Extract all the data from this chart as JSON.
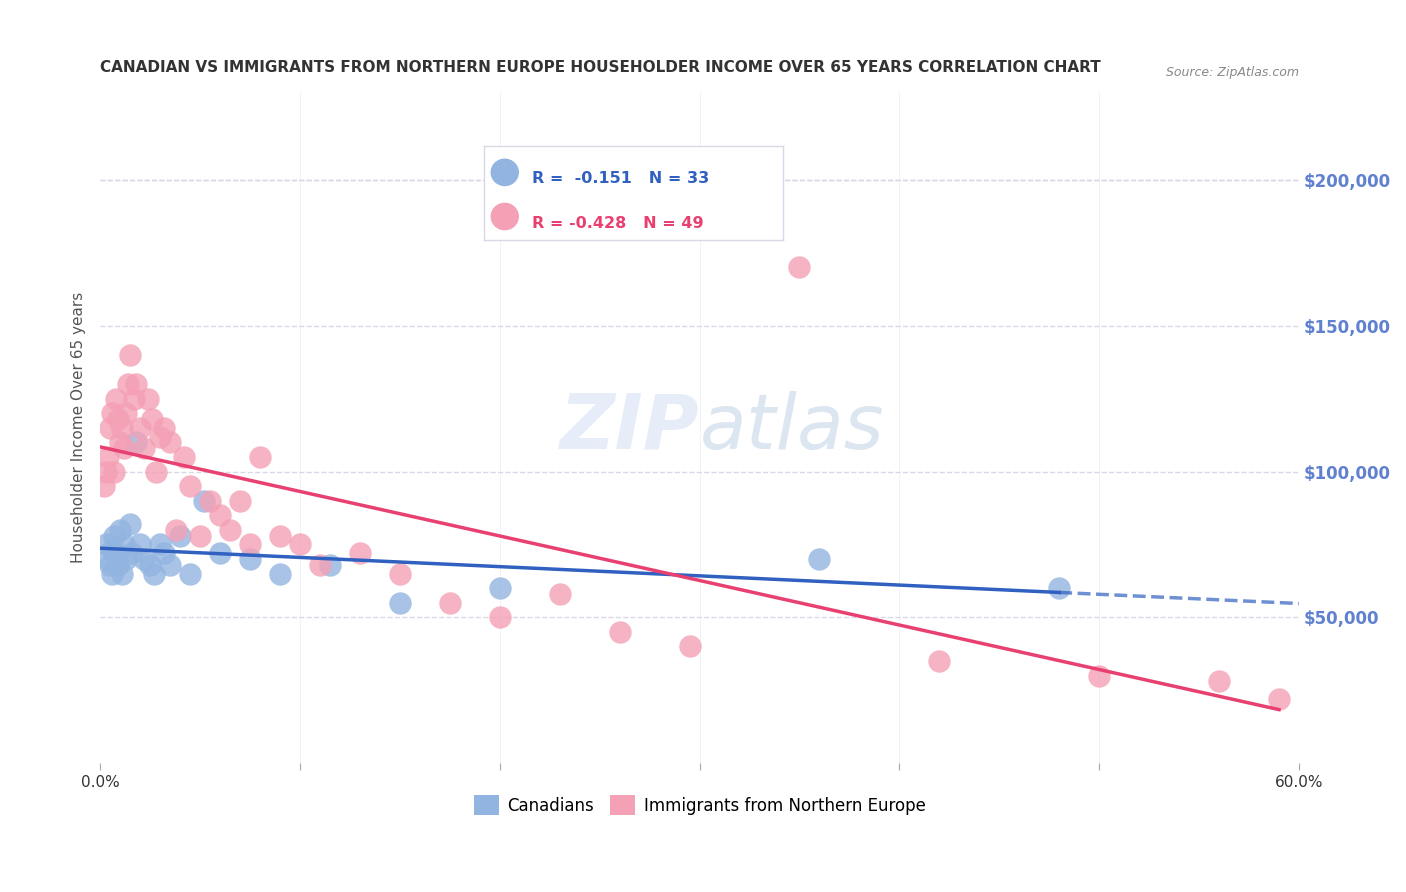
{
  "title": "CANADIAN VS IMMIGRANTS FROM NORTHERN EUROPE HOUSEHOLDER INCOME OVER 65 YEARS CORRELATION CHART",
  "source": "Source: ZipAtlas.com",
  "ylabel": "Householder Income Over 65 years",
  "xmin": 0.0,
  "xmax": 0.6,
  "ymin": 0,
  "ymax": 230000,
  "right_yticks": [
    50000,
    100000,
    150000,
    200000
  ],
  "right_yticklabels": [
    "$50,000",
    "$100,000",
    "$150,000",
    "$200,000"
  ],
  "canadians_R": -0.151,
  "canadians_N": 33,
  "immigrants_R": -0.428,
  "immigrants_N": 49,
  "legend_label_canadians": "Canadians",
  "legend_label_immigrants": "Immigrants from Northern Europe",
  "canadian_color": "#92b4e0",
  "immigrant_color": "#f4a0b5",
  "canadian_line_color": "#3060c0",
  "immigrant_line_color": "#e84070",
  "background_color": "#ffffff",
  "grid_color": "#d8d8e8",
  "canadians_x": [
    0.003,
    0.004,
    0.005,
    0.006,
    0.006,
    0.007,
    0.008,
    0.009,
    0.01,
    0.011,
    0.012,
    0.013,
    0.015,
    0.016,
    0.018,
    0.02,
    0.022,
    0.025,
    0.027,
    0.03,
    0.032,
    0.035,
    0.04,
    0.045,
    0.052,
    0.06,
    0.075,
    0.09,
    0.115,
    0.15,
    0.2,
    0.36,
    0.48
  ],
  "canadians_y": [
    75000,
    70000,
    68000,
    73000,
    65000,
    78000,
    72000,
    68000,
    80000,
    65000,
    75000,
    70000,
    82000,
    72000,
    110000,
    75000,
    70000,
    68000,
    65000,
    75000,
    72000,
    68000,
    78000,
    65000,
    90000,
    72000,
    70000,
    65000,
    68000,
    55000,
    60000,
    70000,
    60000
  ],
  "immigrants_x": [
    0.002,
    0.003,
    0.004,
    0.005,
    0.006,
    0.007,
    0.008,
    0.009,
    0.01,
    0.011,
    0.012,
    0.013,
    0.014,
    0.015,
    0.017,
    0.018,
    0.02,
    0.022,
    0.024,
    0.026,
    0.028,
    0.03,
    0.032,
    0.035,
    0.038,
    0.042,
    0.045,
    0.05,
    0.055,
    0.06,
    0.065,
    0.07,
    0.075,
    0.08,
    0.09,
    0.1,
    0.11,
    0.13,
    0.15,
    0.175,
    0.2,
    0.23,
    0.26,
    0.295,
    0.35,
    0.42,
    0.5,
    0.56,
    0.59
  ],
  "immigrants_y": [
    95000,
    100000,
    105000,
    115000,
    120000,
    100000,
    125000,
    118000,
    110000,
    115000,
    108000,
    120000,
    130000,
    140000,
    125000,
    130000,
    115000,
    108000,
    125000,
    118000,
    100000,
    112000,
    115000,
    110000,
    80000,
    105000,
    95000,
    78000,
    90000,
    85000,
    80000,
    90000,
    75000,
    105000,
    78000,
    75000,
    68000,
    72000,
    65000,
    55000,
    50000,
    58000,
    45000,
    40000,
    170000,
    35000,
    30000,
    28000,
    22000
  ]
}
